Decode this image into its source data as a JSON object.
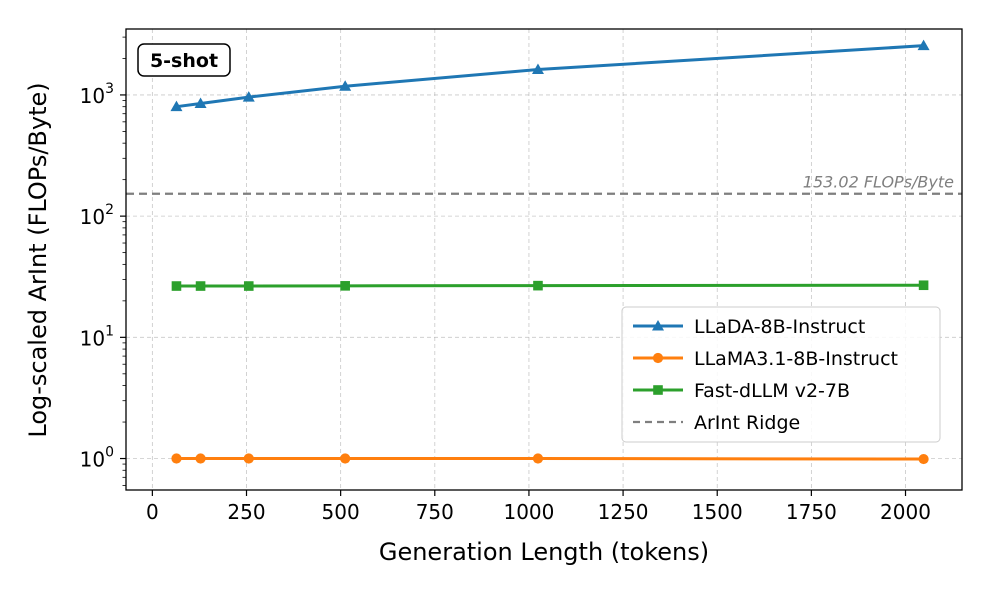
{
  "chart_data": {
    "type": "line",
    "title": "",
    "xlabel": "Generation Length (tokens)",
    "ylabel": "Log-scaled ArInt (FLOPs/Byte)",
    "yscale": "log",
    "xlim": [
      -70,
      2150
    ],
    "ylim": [
      0.55,
      3500
    ],
    "grid": true,
    "xticks": [
      0,
      250,
      500,
      750,
      1000,
      1250,
      1500,
      1750,
      2000
    ],
    "yticks": [
      {
        "value": 1,
        "base": "10",
        "exp": "0"
      },
      {
        "value": 10,
        "base": "10",
        "exp": "1"
      },
      {
        "value": 100,
        "base": "10",
        "exp": "2"
      },
      {
        "value": 1000,
        "base": "10",
        "exp": "3"
      }
    ],
    "x": [
      64,
      128,
      256,
      512,
      1024,
      2048
    ],
    "series": [
      {
        "name": "LLaDA-8B-Instruct",
        "color": "#1f77b4",
        "marker": "triangle",
        "values": [
          800,
          850,
          960,
          1180,
          1620,
          2550
        ]
      },
      {
        "name": "LLaMA3.1-8B-Instruct",
        "color": "#ff7f0e",
        "marker": "circle",
        "values": [
          1.0,
          1.0,
          1.0,
          1.0,
          1.0,
          0.99
        ]
      },
      {
        "name": "Fast-dLLM v2-7B",
        "color": "#2ca02c",
        "marker": "square",
        "values": [
          26.5,
          26.5,
          26.5,
          26.6,
          26.7,
          26.9
        ]
      }
    ],
    "reference_line": {
      "name": "ArInt Ridge",
      "value": 153.02,
      "label": "153.02 FLOPs/Byte",
      "color": "#7f7f7f",
      "style": "dashed"
    },
    "annotation": "5-shot",
    "legend_position": "center-right"
  }
}
